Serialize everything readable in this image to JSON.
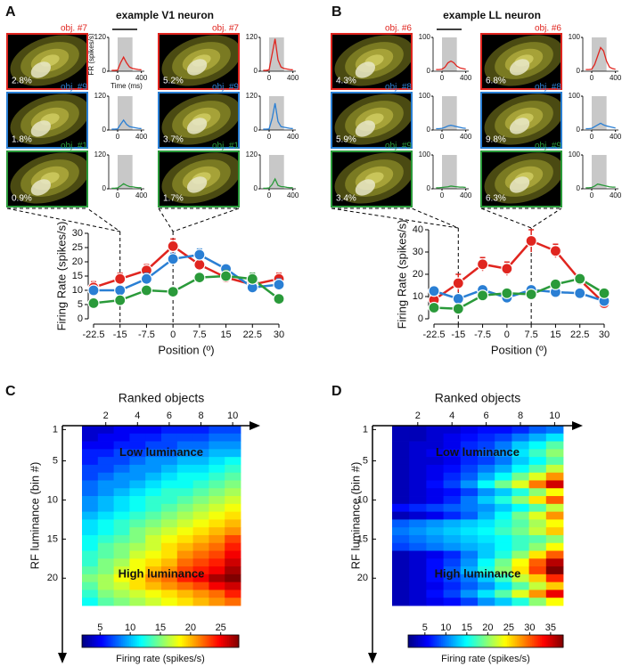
{
  "chart_data": [
    {
      "panel": "A",
      "type": "line",
      "title": "example V1 neuron",
      "xlabel": "Position (º)",
      "ylabel": "Firing Rate (spikes/s)",
      "x": [
        -22.5,
        -15,
        -7.5,
        0,
        7.5,
        15,
        22.5,
        30
      ],
      "xlim": [
        -22.5,
        30
      ],
      "xticks": [
        -22.5,
        -15,
        -7.5,
        0,
        7.5,
        15,
        22.5,
        30
      ],
      "ylim": [
        0,
        30
      ],
      "yticks": [
        0,
        5,
        10,
        15,
        20,
        25,
        30
      ],
      "reference_lines": [
        -15,
        0
      ],
      "series": [
        {
          "color": "#e0251f",
          "values": [
            11,
            14,
            17,
            25.5,
            19,
            14.5,
            12,
            14
          ],
          "errors": [
            2,
            2,
            2,
            2.5,
            2,
            1.5,
            2,
            2
          ]
        },
        {
          "color": "#2a7fd4",
          "values": [
            10,
            10,
            14,
            21,
            22.5,
            17.5,
            11,
            12
          ],
          "errors": [
            1.5,
            1.5,
            2,
            2,
            2,
            1.5,
            1.5,
            2
          ]
        },
        {
          "color": "#2a9a3a",
          "values": [
            5.5,
            6.5,
            10,
            9.5,
            14.5,
            15,
            14,
            7
          ],
          "errors": [
            1,
            1,
            1.5,
            1.5,
            1.5,
            2,
            2,
            1.5
          ]
        }
      ],
      "psth_ylabel": "FR (spikes/s)",
      "psth_xlabel": "Time (ms)",
      "psth_t": [
        -100,
        -50,
        0,
        50,
        100,
        150,
        200,
        250,
        300,
        350,
        400
      ],
      "psth_xlim": [
        -150,
        450
      ],
      "psth_xticks": [
        0,
        400
      ],
      "psth_ylim": [
        0,
        120
      ],
      "psth_yticks": [
        0,
        120
      ],
      "stimulus_window": [
        0,
        250
      ],
      "examples": [
        {
          "label": "obj. #7",
          "luminance": "2.8%",
          "color": "#e0251f",
          "psth": [
            3,
            3,
            4,
            30,
            50,
            30,
            15,
            10,
            8,
            6,
            5
          ]
        },
        {
          "label": "obj. #7",
          "luminance": "5.2%",
          "color": "#e0251f",
          "psth": [
            3,
            3,
            5,
            60,
            115,
            40,
            15,
            10,
            8,
            6,
            5
          ]
        },
        {
          "label": "obj. #9",
          "luminance": "1.8%",
          "color": "#2a7fd4",
          "psth": [
            3,
            3,
            4,
            20,
            35,
            20,
            12,
            10,
            8,
            6,
            5
          ]
        },
        {
          "label": "obj. #9",
          "luminance": "3.7%",
          "color": "#2a7fd4",
          "psth": [
            3,
            3,
            4,
            40,
            95,
            30,
            12,
            10,
            8,
            6,
            5
          ]
        },
        {
          "label": "obj. #1",
          "luminance": "0.9%",
          "color": "#2a9a3a",
          "psth": [
            2,
            2,
            3,
            10,
            18,
            12,
            8,
            7,
            5,
            4,
            4
          ]
        },
        {
          "label": "obj. #1",
          "luminance": "1.7%",
          "color": "#2a9a3a",
          "psth": [
            2,
            2,
            3,
            15,
            35,
            12,
            8,
            7,
            5,
            4,
            4
          ]
        }
      ]
    },
    {
      "panel": "B",
      "type": "line",
      "title": "example LL neuron",
      "xlabel": "Position (º)",
      "ylabel": "Firing Rate (spikes/s)",
      "x": [
        -22.5,
        -15,
        -7.5,
        0,
        7.5,
        15,
        22.5,
        30
      ],
      "xlim": [
        -22.5,
        30
      ],
      "xticks": [
        -22.5,
        -15,
        -7.5,
        0,
        7.5,
        15,
        22.5,
        30
      ],
      "ylim": [
        0,
        40
      ],
      "yticks": [
        0,
        10,
        20,
        30,
        40
      ],
      "reference_lines": [
        -15,
        7.5
      ],
      "series": [
        {
          "color": "#e0251f",
          "values": [
            8.5,
            16,
            24.5,
            22.5,
            35,
            30.5,
            17.5,
            7
          ],
          "errors": [
            2,
            4,
            3,
            3,
            5,
            3,
            2.5,
            1
          ]
        },
        {
          "color": "#2a7fd4",
          "values": [
            12.5,
            9,
            13,
            9.5,
            13,
            12,
            11.5,
            8
          ],
          "errors": [
            2,
            2,
            1.5,
            1.5,
            1.5,
            1.5,
            1.5,
            1
          ]
        },
        {
          "color": "#2a9a3a",
          "values": [
            5,
            4.5,
            10.5,
            11.5,
            11,
            15.5,
            18,
            11.5
          ],
          "errors": [
            1,
            1,
            1.5,
            1.5,
            1.5,
            1.5,
            2,
            1.5
          ]
        }
      ],
      "psth_t": [
        -100,
        -50,
        0,
        50,
        100,
        150,
        200,
        250,
        300,
        350,
        400
      ],
      "psth_xlim": [
        -150,
        450
      ],
      "psth_xticks": [
        0,
        400
      ],
      "psth_ylim": [
        0,
        100
      ],
      "psth_yticks": [
        0,
        100
      ],
      "stimulus_window": [
        0,
        250
      ],
      "examples": [
        {
          "label": "obj. #6",
          "luminance": "4.3%",
          "color": "#e0251f",
          "psth": [
            5,
            5,
            6,
            12,
            25,
            30,
            25,
            15,
            10,
            8,
            6
          ]
        },
        {
          "label": "obj. #6",
          "luminance": "6.8%",
          "color": "#e0251f",
          "psth": [
            5,
            5,
            6,
            20,
            45,
            70,
            60,
            30,
            12,
            8,
            6
          ]
        },
        {
          "label": "obj. #8",
          "luminance": "5.9%",
          "color": "#2a7fd4",
          "psth": [
            4,
            4,
            5,
            8,
            12,
            14,
            12,
            10,
            8,
            6,
            5
          ]
        },
        {
          "label": "obj. #8",
          "luminance": "9.8%",
          "color": "#2a7fd4",
          "psth": [
            4,
            4,
            5,
            10,
            15,
            20,
            15,
            12,
            10,
            8,
            6
          ]
        },
        {
          "label": "obj. #9",
          "luminance": "3.4%",
          "color": "#2a9a3a",
          "psth": [
            3,
            3,
            4,
            5,
            6,
            8,
            7,
            6,
            5,
            5,
            4
          ]
        },
        {
          "label": "obj. #9",
          "luminance": "6.3%",
          "color": "#2a9a3a",
          "psth": [
            3,
            3,
            4,
            8,
            14,
            12,
            10,
            8,
            6,
            5,
            5
          ]
        }
      ]
    },
    {
      "panel": "C",
      "type": "heatmap",
      "title": "Ranked objects",
      "ylabel": "RF luminance (bin #)",
      "xlim": [
        0.5,
        10.5
      ],
      "xticks": [
        2,
        4,
        6,
        8,
        10
      ],
      "ylim": [
        0.5,
        23.5
      ],
      "yticks": [
        1,
        5,
        10,
        15,
        20
      ],
      "annotations": [
        "Low luminance",
        "High luminance"
      ],
      "clim": [
        2,
        28
      ],
      "cticks": [
        5,
        10,
        15,
        20,
        25
      ],
      "clabel": "Firing rate (spikes/s)",
      "values": [
        [
          4,
          4,
          5,
          5,
          5,
          6,
          6,
          6,
          7,
          7
        ],
        [
          4,
          5,
          5,
          6,
          6,
          7,
          7,
          7,
          8,
          8
        ],
        [
          5,
          5,
          6,
          6,
          7,
          7,
          8,
          8,
          9,
          9
        ],
        [
          6,
          6,
          7,
          7,
          8,
          8,
          9,
          9,
          10,
          10
        ],
        [
          6,
          7,
          7,
          8,
          9,
          9,
          10,
          10,
          11,
          12
        ],
        [
          7,
          7,
          8,
          9,
          9,
          10,
          11,
          11,
          12,
          13
        ],
        [
          7,
          8,
          9,
          9,
          10,
          11,
          12,
          12,
          13,
          14
        ],
        [
          8,
          9,
          9,
          10,
          11,
          12,
          12,
          13,
          14,
          15
        ],
        [
          8,
          9,
          10,
          11,
          12,
          13,
          13,
          14,
          15,
          16
        ],
        [
          9,
          10,
          11,
          12,
          13,
          13,
          14,
          15,
          16,
          17
        ],
        [
          9,
          10,
          11,
          12,
          13,
          14,
          15,
          16,
          17,
          18
        ],
        [
          10,
          11,
          12,
          13,
          14,
          15,
          16,
          17,
          18,
          19
        ],
        [
          11,
          12,
          13,
          14,
          15,
          16,
          17,
          18,
          19,
          20
        ],
        [
          11,
          12,
          13,
          15,
          16,
          17,
          18,
          19,
          20,
          21
        ],
        [
          12,
          13,
          14,
          15,
          17,
          18,
          19,
          20,
          21,
          23
        ],
        [
          12,
          14,
          15,
          16,
          17,
          19,
          20,
          21,
          22,
          24
        ],
        [
          13,
          14,
          15,
          17,
          18,
          19,
          21,
          22,
          23,
          25
        ],
        [
          13,
          15,
          16,
          18,
          19,
          20,
          22,
          23,
          24,
          26
        ],
        [
          14,
          15,
          17,
          18,
          20,
          21,
          23,
          24,
          25,
          27
        ],
        [
          15,
          16,
          18,
          19,
          21,
          22,
          24,
          25,
          27,
          28
        ],
        [
          14,
          16,
          17,
          19,
          20,
          21,
          22,
          23,
          25,
          26
        ],
        [
          13,
          15,
          16,
          17,
          18,
          19,
          20,
          21,
          22,
          24
        ],
        [
          12,
          14,
          15,
          16,
          17,
          18,
          19,
          20,
          21,
          22
        ]
      ]
    },
    {
      "panel": "D",
      "type": "heatmap",
      "title": "Ranked objects",
      "ylabel": "RF luminance (bin #)",
      "xlim": [
        0.5,
        10.5
      ],
      "xticks": [
        2,
        4,
        6,
        8,
        10
      ],
      "ylim": [
        0.5,
        23.5
      ],
      "yticks": [
        1,
        5,
        10,
        15,
        20
      ],
      "annotations": [
        "Low luminance",
        "High luminance"
      ],
      "clim": [
        1,
        38
      ],
      "cticks": [
        5,
        10,
        15,
        20,
        25,
        30,
        35
      ],
      "clabel": "Firing rate (spikes/s)",
      "values": [
        [
          3,
          3,
          4,
          4,
          5,
          6,
          6,
          7,
          9,
          10
        ],
        [
          3,
          3,
          4,
          5,
          6,
          7,
          8,
          10,
          12,
          14
        ],
        [
          3,
          4,
          4,
          5,
          7,
          8,
          10,
          13,
          15,
          18
        ],
        [
          3,
          4,
          5,
          6,
          7,
          9,
          11,
          14,
          17,
          20
        ],
        [
          3,
          4,
          4,
          5,
          7,
          8,
          10,
          13,
          15,
          18
        ],
        [
          3,
          4,
          5,
          6,
          8,
          10,
          12,
          15,
          18,
          22
        ],
        [
          3,
          4,
          5,
          7,
          9,
          12,
          15,
          19,
          23,
          28
        ],
        [
          3,
          4,
          6,
          8,
          11,
          15,
          19,
          23,
          29,
          35
        ],
        [
          3,
          4,
          5,
          6,
          8,
          11,
          13,
          16,
          20,
          24
        ],
        [
          3,
          4,
          5,
          7,
          10,
          13,
          16,
          20,
          25,
          30
        ],
        [
          6,
          7,
          8,
          9,
          10,
          11,
          13,
          15,
          18,
          22
        ],
        [
          3,
          4,
          5,
          7,
          9,
          12,
          15,
          19,
          23,
          28
        ],
        [
          9,
          10,
          11,
          12,
          13,
          14,
          16,
          18,
          21,
          24
        ],
        [
          10,
          11,
          12,
          13,
          14,
          15,
          17,
          19,
          22,
          26
        ],
        [
          9,
          10,
          11,
          12,
          13,
          14,
          15,
          17,
          18,
          20
        ],
        [
          8,
          9,
          10,
          11,
          12,
          13,
          15,
          17,
          20,
          24
        ],
        [
          3,
          4,
          5,
          7,
          10,
          13,
          16,
          20,
          25,
          30
        ],
        [
          3,
          4,
          6,
          8,
          11,
          15,
          19,
          24,
          30,
          36
        ],
        [
          3,
          4,
          6,
          9,
          12,
          16,
          20,
          25,
          31,
          38
        ],
        [
          3,
          4,
          6,
          8,
          10,
          13,
          17,
          22,
          26,
          32
        ],
        [
          3,
          4,
          5,
          7,
          9,
          11,
          14,
          18,
          22,
          26
        ],
        [
          3,
          4,
          6,
          8,
          11,
          14,
          18,
          23,
          28,
          34
        ],
        [
          3,
          4,
          5,
          6,
          8,
          11,
          13,
          16,
          20,
          24
        ]
      ]
    }
  ]
}
